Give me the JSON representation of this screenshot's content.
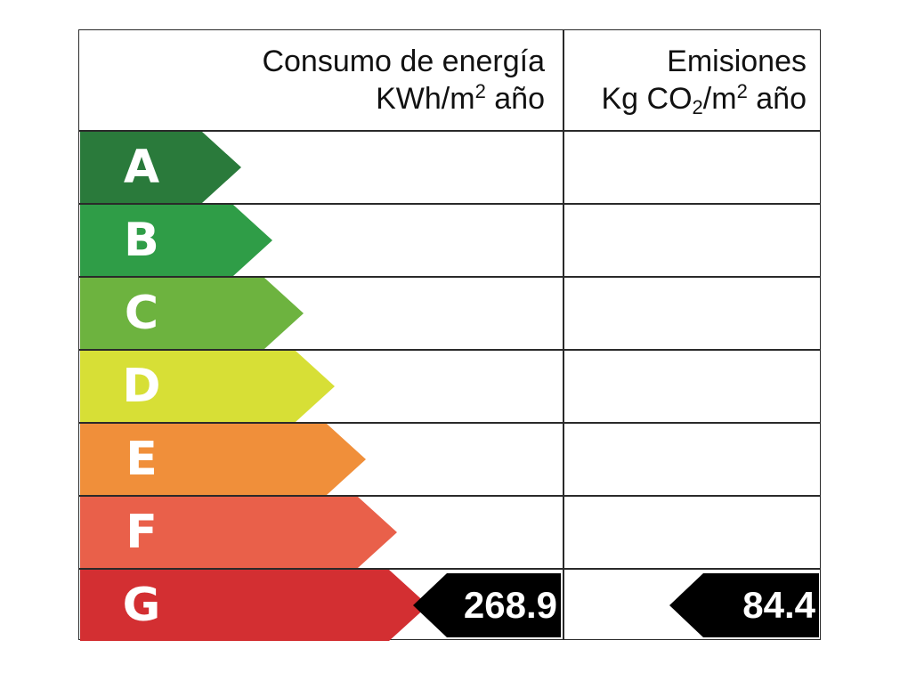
{
  "header": {
    "energy": {
      "line1": "Consumo de energía",
      "unit_pre": "KWh/m",
      "unit_sup": "2",
      "unit_post": " año"
    },
    "emissions": {
      "line1": "Emisiones",
      "unit_a": "Kg CO",
      "unit_sub": "2",
      "unit_b": "/m",
      "unit_sup": "2",
      "unit_post": " año"
    }
  },
  "ratings": [
    {
      "letter": "A",
      "color": "#2a7a3b"
    },
    {
      "letter": "B",
      "color": "#2f9d47"
    },
    {
      "letter": "C",
      "color": "#6db33f"
    },
    {
      "letter": "D",
      "color": "#d7df36"
    },
    {
      "letter": "E",
      "color": "#f08f3a"
    },
    {
      "letter": "F",
      "color": "#e9604a"
    },
    {
      "letter": "G",
      "color": "#d32f32"
    }
  ],
  "energy_value": "268.9",
  "emissions_value": "84.4",
  "energy_rating": "G",
  "emissions_rating": "G"
}
